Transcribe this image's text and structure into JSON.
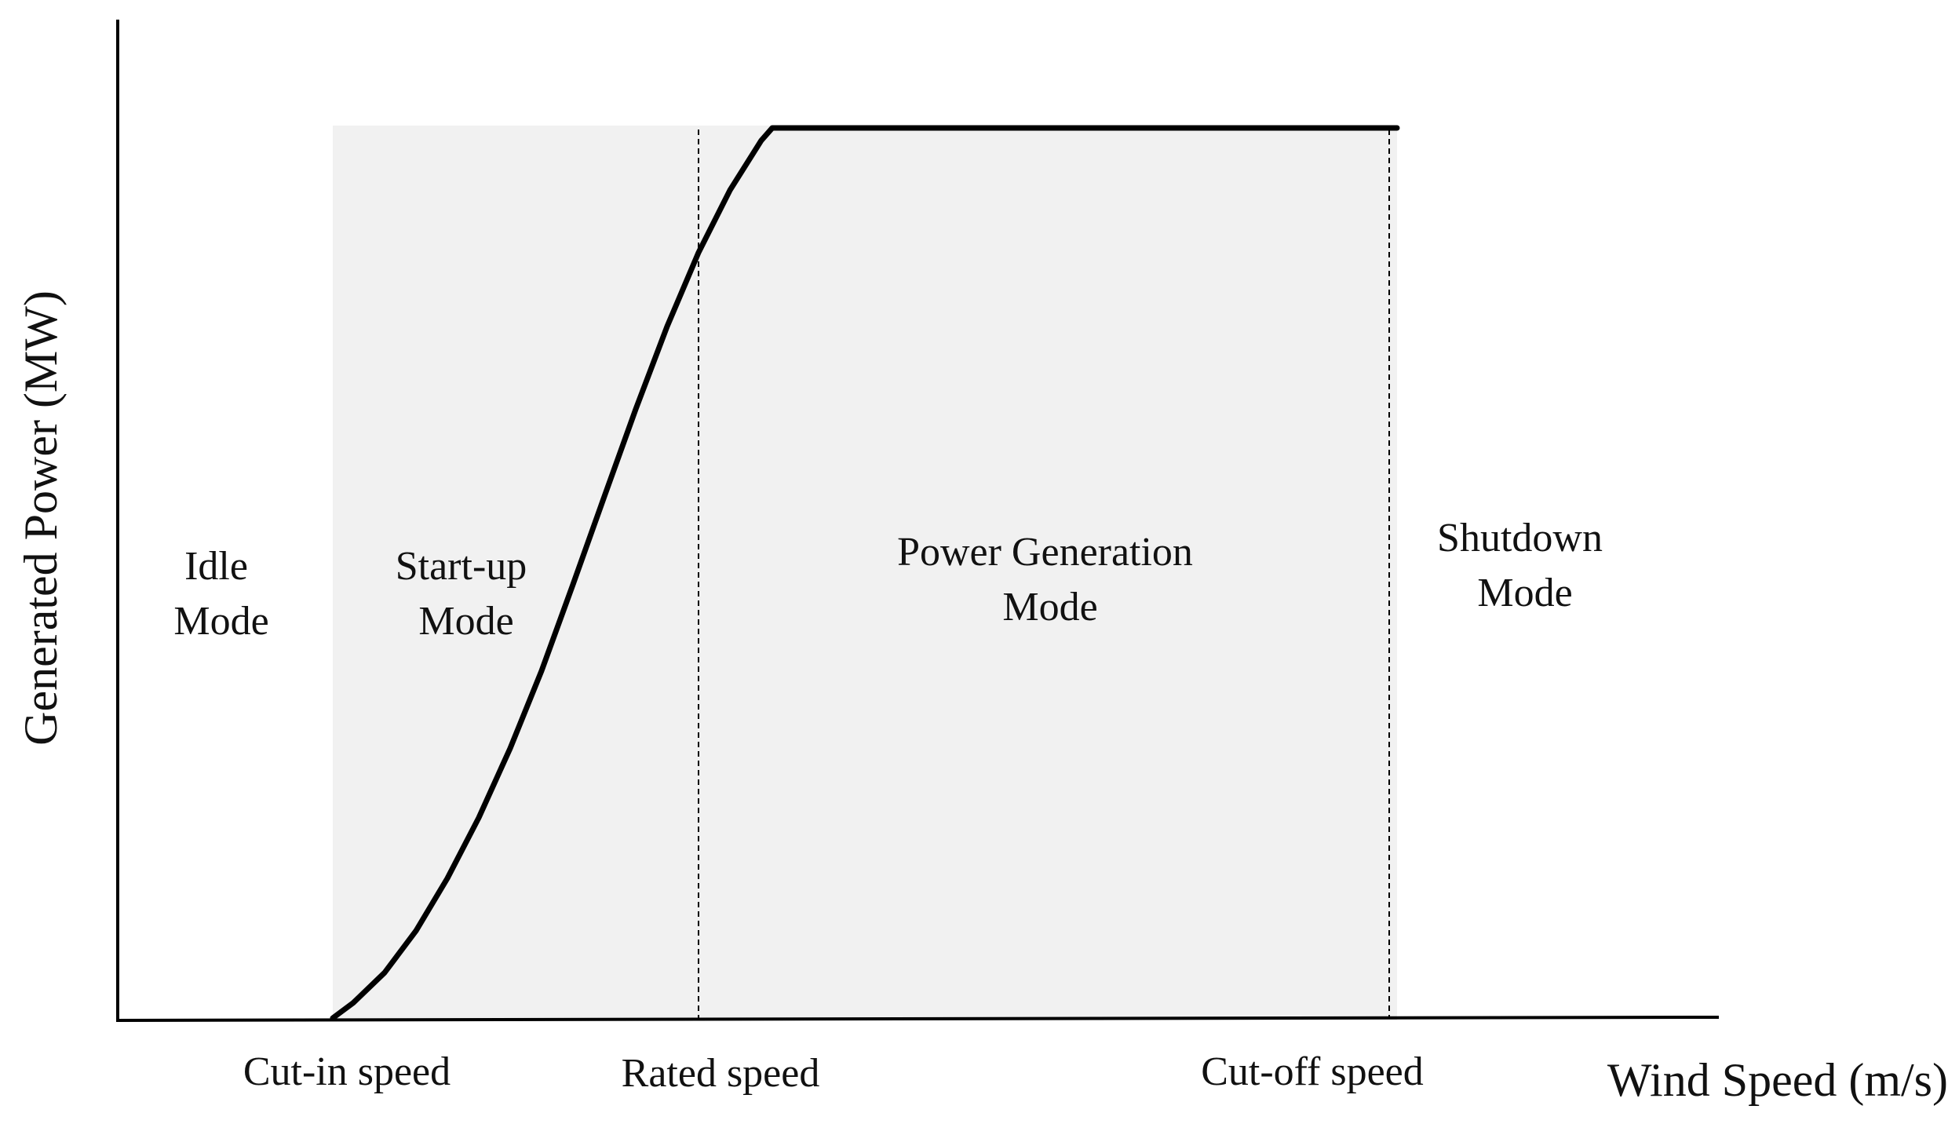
{
  "chart_data": {
    "type": "line",
    "title": "",
    "xlabel": "Wind Speed (m/s)",
    "ylabel": "Generated Power (MW)",
    "xlim": [
      0,
      100
    ],
    "ylim": [
      0,
      100
    ],
    "grid": false,
    "tick_labels": [
      {
        "x": 20,
        "label": "Cut-in speed"
      },
      {
        "x": 41.7,
        "label": "Rated speed"
      },
      {
        "x": 81.5,
        "label": "Cut-off speed"
      }
    ],
    "series": [
      {
        "name": "Power curve",
        "x": [
          0,
          13.7,
          15,
          17,
          19,
          21,
          23,
          25,
          27,
          29,
          31,
          33,
          35,
          37,
          39,
          41,
          41.7,
          81.5
        ],
        "y": [
          0,
          0,
          1.7,
          5.1,
          9.8,
          15.7,
          22.5,
          30.3,
          39,
          48.7,
          58.6,
          68.4,
          77.7,
          86,
          93,
          98.6,
          100,
          100
        ]
      }
    ],
    "markers": [
      {
        "x": 41.7,
        "style": "dashed"
      },
      {
        "x": 81.5,
        "style": "dashed"
      }
    ],
    "shaded_regions": [
      {
        "x_start": 13.7,
        "x_end": 81.5,
        "color": "#f1f1f1"
      }
    ],
    "annotations": [
      {
        "x": 6.3,
        "lines": [
          "Idle",
          "Mode"
        ]
      },
      {
        "x": 20.5,
        "lines": [
          "Start-up",
          "Mode"
        ]
      },
      {
        "x": 53.8,
        "lines": [
          "Power Generation",
          "Mode"
        ]
      },
      {
        "x": 81.5,
        "lines": [
          "Shutdown",
          "Mode"
        ]
      }
    ],
    "colors": {
      "curve": "#000000",
      "shade": "#f1f1f1",
      "axis": "#000000"
    }
  }
}
